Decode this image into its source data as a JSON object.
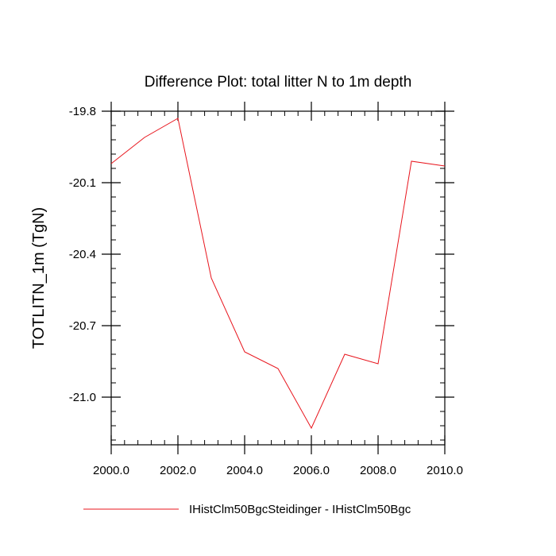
{
  "chart_data": {
    "type": "line",
    "title": "Difference Plot: total litter N to 1m depth",
    "xlabel": "",
    "ylabel": "TOTLITN_1m  (TgN)",
    "xlim": [
      2000.0,
      2010.0
    ],
    "ylim": [
      -21.2,
      -19.8
    ],
    "x_ticks": [
      2000.0,
      2002.0,
      2004.0,
      2006.0,
      2008.0,
      2010.0
    ],
    "x_tick_labels": [
      "2000.0",
      "2002.0",
      "2004.0",
      "2006.0",
      "2008.0",
      "2010.0"
    ],
    "y_ticks": [
      -19.8,
      -20.1,
      -20.4,
      -20.7,
      -21.0
    ],
    "y_tick_labels": [
      "-19.8",
      "-20.1",
      "-20.4",
      "-20.7",
      "-21.0"
    ],
    "grid": false,
    "legend_position": "bottom",
    "series": [
      {
        "name": "IHistClm50BgcSteidinger - IHistClm50Bgc",
        "color": "#e8141c",
        "x": [
          2000,
          2001,
          2002,
          2003,
          2004,
          2005,
          2006,
          2007,
          2008,
          2009,
          2010
        ],
        "y": [
          -20.02,
          -19.91,
          -19.83,
          -20.5,
          -20.81,
          -20.88,
          -21.13,
          -20.82,
          -20.86,
          -20.01,
          -20.03
        ]
      }
    ]
  }
}
